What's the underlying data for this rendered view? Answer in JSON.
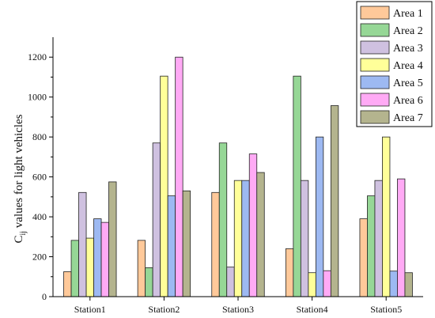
{
  "chart_data": {
    "type": "bar",
    "title": "",
    "xlabel": "",
    "ylabel": {
      "main": "C",
      "sub": "ij",
      "rest": " values for light vehicles"
    },
    "categories": [
      "Station1",
      "Station2",
      "Station3",
      "Station4",
      "Station5"
    ],
    "ylim": [
      0,
      1300
    ],
    "yticks": [
      0,
      200,
      400,
      600,
      800,
      1000,
      1200
    ],
    "legend_position": "top-right",
    "grid": false,
    "series": [
      {
        "name": "Area 1",
        "color": "#FFC99A",
        "values": [
          125,
          282,
          522,
          240,
          390
        ]
      },
      {
        "name": "Area 2",
        "color": "#96D796",
        "values": [
          282,
          145,
          770,
          1105,
          505
        ]
      },
      {
        "name": "Area 3",
        "color": "#CFC1E0",
        "values": [
          522,
          770,
          148,
          582,
          582
        ]
      },
      {
        "name": "Area 4",
        "color": "#FFFF99",
        "values": [
          293,
          1105,
          582,
          120,
          800
        ]
      },
      {
        "name": "Area 5",
        "color": "#9DB9F2",
        "values": [
          390,
          505,
          582,
          800,
          128
        ]
      },
      {
        "name": "Area 6",
        "color": "#FFAAF5",
        "values": [
          372,
          1200,
          715,
          130,
          590
        ]
      },
      {
        "name": "Area 7",
        "color": "#B4B48E",
        "values": [
          575,
          530,
          622,
          957,
          120
        ]
      }
    ]
  }
}
